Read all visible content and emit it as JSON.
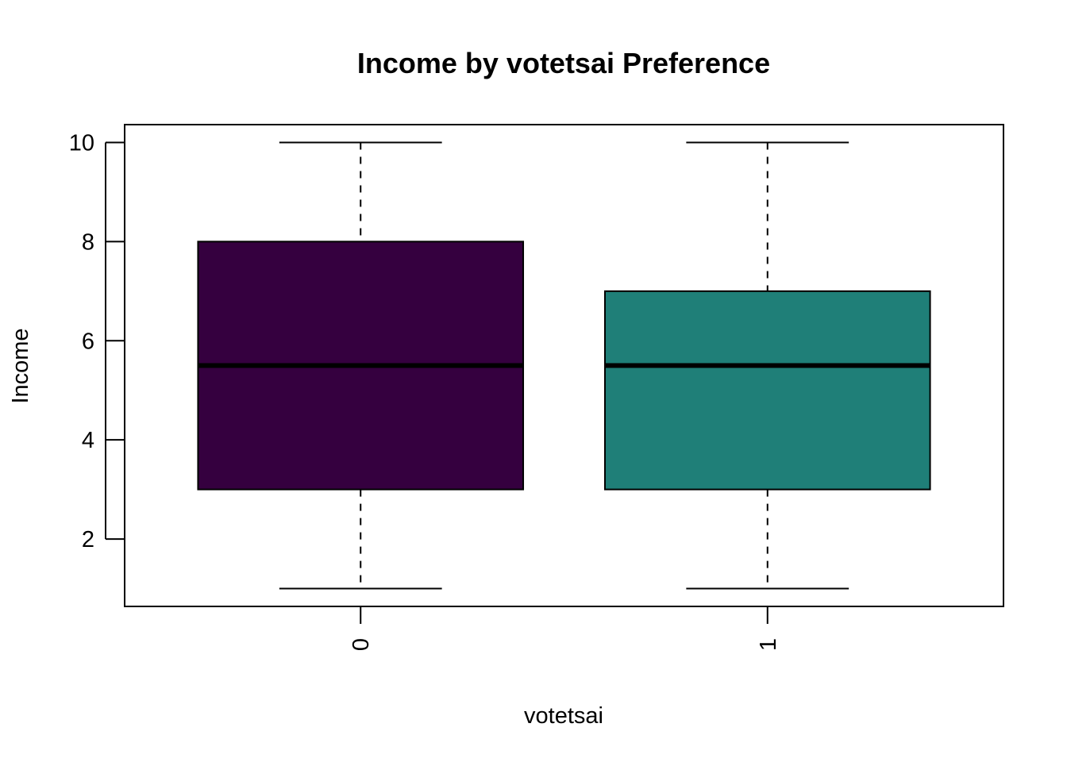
{
  "chart_data": {
    "type": "box",
    "title": "Income by votetsai Preference",
    "xlabel": "votetsai",
    "ylabel": "Income",
    "categories": [
      "0",
      "1"
    ],
    "yticks": [
      2,
      4,
      6,
      8,
      10
    ],
    "ylim": [
      0.64,
      10.36
    ],
    "grid": false,
    "legend": "none",
    "boxes": [
      {
        "category": "0",
        "min": 1,
        "q1": 3,
        "median": 5.5,
        "q3": 8,
        "max": 10,
        "color": "#35003f"
      },
      {
        "category": "1",
        "min": 1,
        "q1": 3,
        "median": 5.5,
        "q3": 7,
        "max": 10,
        "color": "#1f7f78"
      }
    ]
  }
}
